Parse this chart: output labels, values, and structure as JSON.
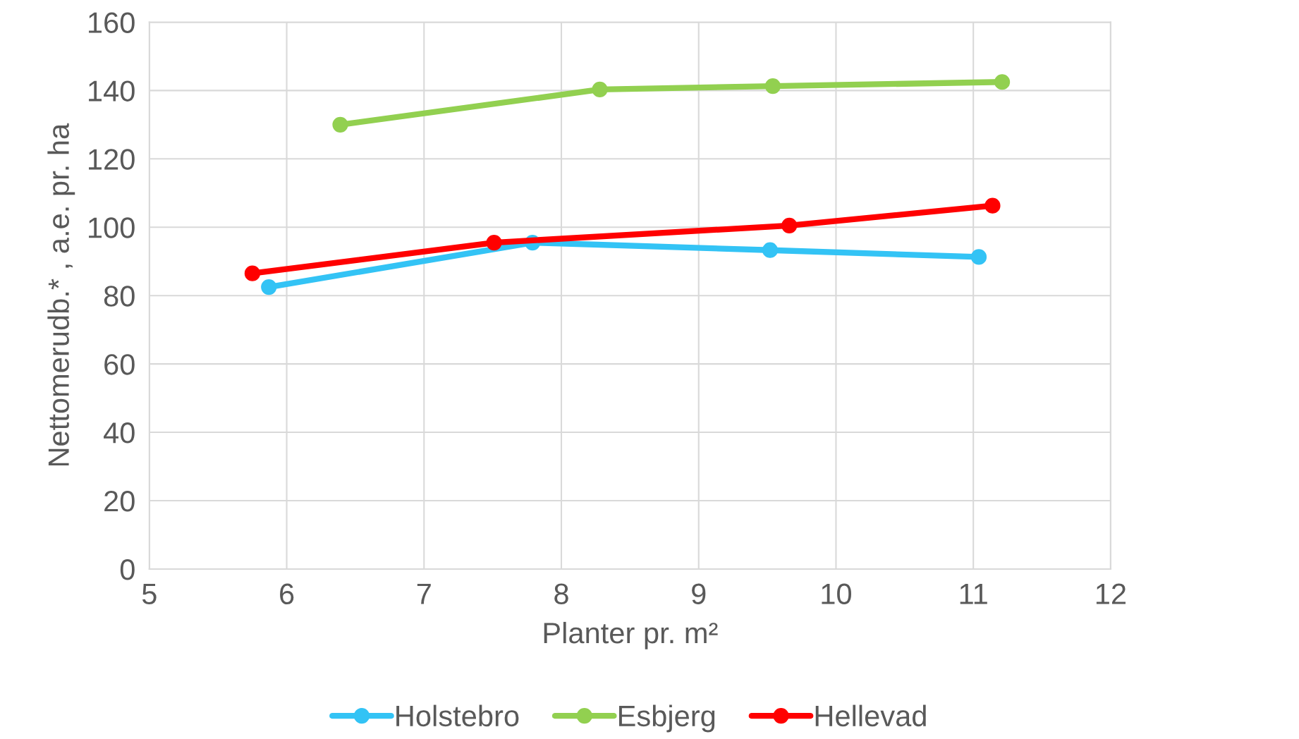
{
  "chart_data": {
    "type": "line",
    "xlabel": "Planter pr. m²",
    "ylabel": "Nettomerudb.* , a.e. pr. ha",
    "xlim": [
      5,
      12
    ],
    "xticks": [
      5,
      6,
      7,
      8,
      9,
      10,
      11,
      12
    ],
    "ylim": [
      0,
      160
    ],
    "yticks": [
      0,
      20,
      40,
      60,
      80,
      100,
      120,
      140,
      160
    ],
    "grid": true,
    "legend": "bottom",
    "marker": "circle",
    "line_style": "solid",
    "series": [
      {
        "name": "Holstebro",
        "color": "#33c3f5",
        "x": [
          5.87,
          7.79,
          9.52,
          11.04
        ],
        "values": [
          82.5,
          95.5,
          93.3,
          91.3
        ]
      },
      {
        "name": "Esbjerg",
        "color": "#92d050",
        "x": [
          6.39,
          8.28,
          9.54,
          11.21
        ],
        "values": [
          130,
          140.3,
          141.3,
          142.5
        ]
      },
      {
        "name": "Hellevad",
        "color": "#ff0000",
        "x": [
          5.75,
          7.51,
          9.66,
          11.14
        ],
        "values": [
          86.5,
          95.5,
          100.5,
          106.3
        ]
      }
    ]
  }
}
